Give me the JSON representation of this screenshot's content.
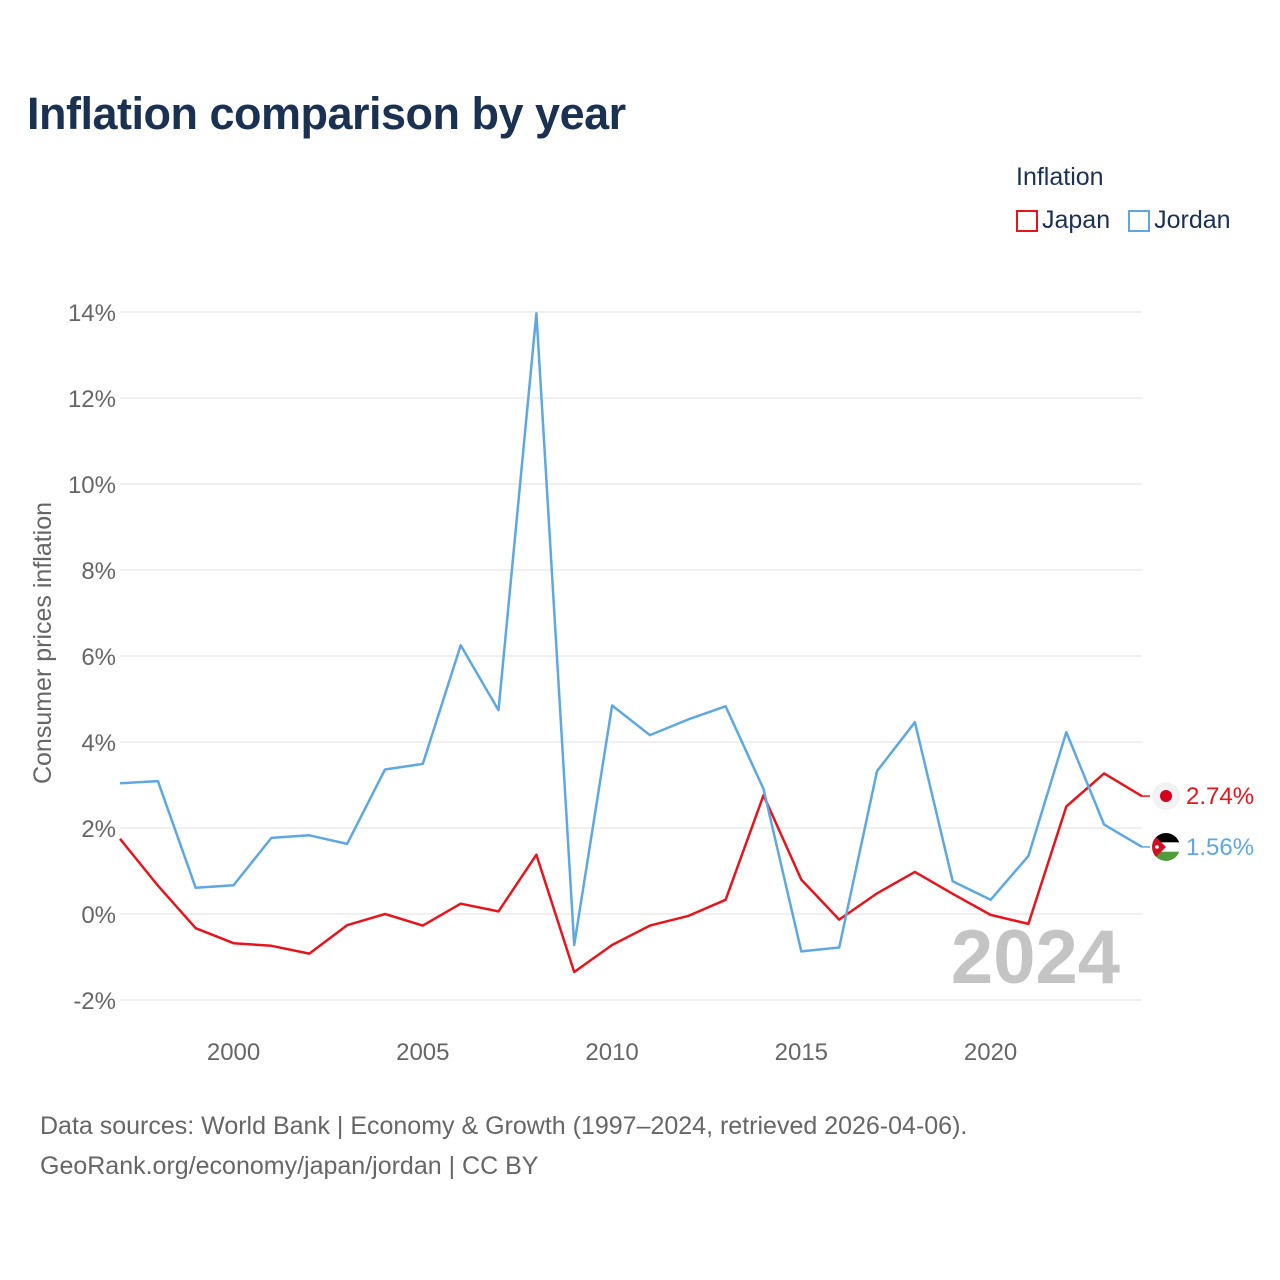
{
  "title": "Inflation comparison by year",
  "legend": {
    "title": "Inflation",
    "items": [
      {
        "name": "Japan",
        "color": "#e8141c"
      },
      {
        "name": "Jordan",
        "color": "#5ea8e2"
      }
    ]
  },
  "chart_data": {
    "type": "line",
    "ylabel": "Consumer prices inflation",
    "ylim": [
      -2,
      14
    ],
    "yticks": [
      -2,
      0,
      2,
      4,
      6,
      8,
      10,
      12,
      14
    ],
    "ytick_labels": [
      "-2%",
      "0%",
      "2%",
      "4%",
      "6%",
      "8%",
      "10%",
      "12%",
      "14%"
    ],
    "xlim": [
      1997,
      2024
    ],
    "xticks": [
      2000,
      2005,
      2010,
      2015,
      2020
    ],
    "xtick_labels": [
      "2000",
      "2005",
      "2010",
      "2015",
      "2020"
    ],
    "x": [
      1997,
      1998,
      1999,
      2000,
      2001,
      2002,
      2003,
      2004,
      2005,
      2006,
      2007,
      2008,
      2009,
      2010,
      2011,
      2012,
      2013,
      2014,
      2015,
      2016,
      2017,
      2018,
      2019,
      2020,
      2021,
      2022,
      2023,
      2024
    ],
    "series": [
      {
        "name": "Japan",
        "color": "#e8141c",
        "end_label": "2.74%",
        "values": [
          1.75,
          0.66,
          -0.33,
          -0.68,
          -0.74,
          -0.92,
          -0.26,
          0.0,
          -0.27,
          0.24,
          0.06,
          1.38,
          -1.35,
          -0.72,
          -0.27,
          -0.05,
          0.33,
          2.76,
          0.8,
          -0.13,
          0.48,
          0.98,
          0.47,
          -0.02,
          -0.23,
          2.5,
          3.27,
          2.74
        ]
      },
      {
        "name": "Jordan",
        "color": "#5ea8e2",
        "end_label": "1.56%",
        "values": [
          3.04,
          3.09,
          0.61,
          0.67,
          1.77,
          1.83,
          1.63,
          3.36,
          3.49,
          6.25,
          4.74,
          13.97,
          -0.72,
          4.85,
          4.16,
          4.52,
          4.83,
          2.91,
          -0.87,
          -0.78,
          3.32,
          4.46,
          0.76,
          0.33,
          1.35,
          4.23,
          2.08,
          1.56
        ]
      }
    ],
    "annotation": "2024"
  },
  "source": {
    "line1": "Data sources: World Bank | Economy & Growth (1997–2024, retrieved 2026-04-06).",
    "line2": "GeoRank.org/economy/japan/jordan | CC BY"
  }
}
